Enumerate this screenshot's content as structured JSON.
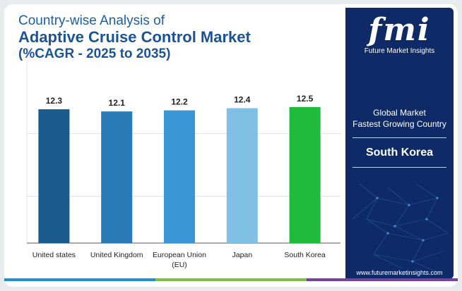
{
  "title": {
    "line1": "Country-wise Analysis of",
    "line2": "Adaptive Cruise Control Market",
    "line3": "(%CAGR - 2025 to 2035)"
  },
  "chart_data": {
    "type": "bar",
    "categories": [
      "United states",
      "United Kingdom",
      "European Union (EU)",
      "Japan",
      "South Korea"
    ],
    "values": [
      12.3,
      12.1,
      12.2,
      12.4,
      12.5
    ],
    "colors": [
      "#1a5a8c",
      "#2a7ab8",
      "#3b96d6",
      "#7fc0e4",
      "#1fbb3a"
    ],
    "title": "",
    "xlabel": "",
    "ylabel": "",
    "grid": true
  },
  "panel": {
    "logo_mark": "fmi",
    "logo_text": "Future Market Insights",
    "line1": "Global Market",
    "line2": "Fastest Growing Country",
    "winner": "South Korea",
    "url": "www.futuremarketinsights.com"
  },
  "colors": {
    "panel_bg": "#0e2b68",
    "title_blue": "#1a5496",
    "bottom_bar": [
      "#1f8fd8",
      "#7ac143",
      "#7b3fa0"
    ]
  }
}
